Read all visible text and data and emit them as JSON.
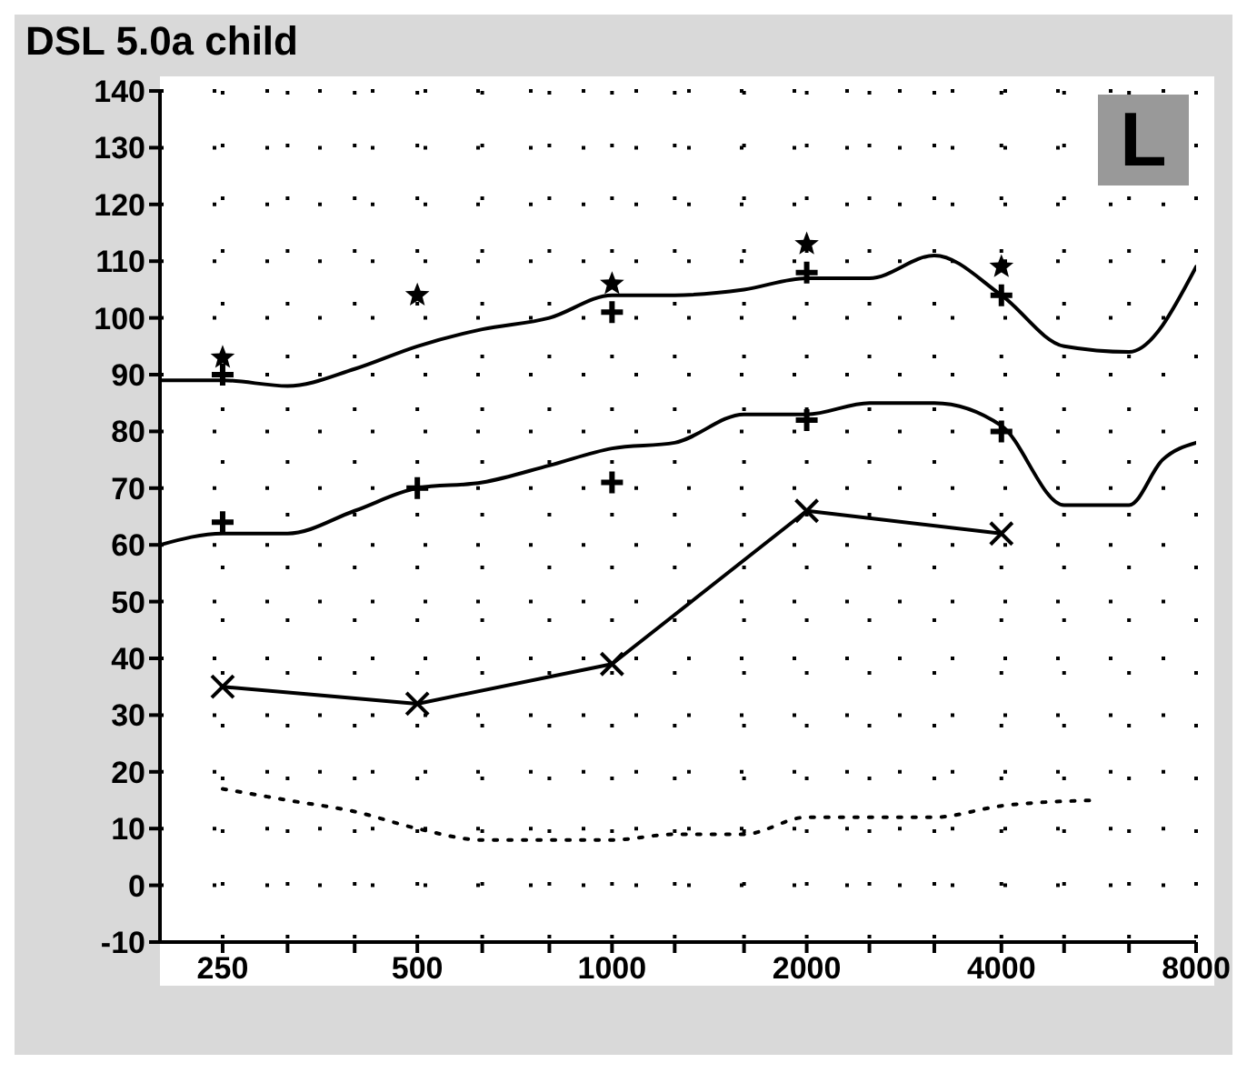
{
  "chart_data": {
    "type": "line",
    "title": "DSL 5.0a child",
    "annotations": [
      "L"
    ],
    "xlim": [
      200,
      8000
    ],
    "log": "x",
    "xticks": [
      250,
      {
        "value": 315,
        "label": null
      },
      {
        "value": 400,
        "label": null
      },
      500,
      {
        "value": 630,
        "label": null
      },
      {
        "value": 800,
        "label": null
      },
      1000,
      {
        "value": 1250,
        "label": null
      },
      {
        "value": 1600,
        "label": null
      },
      2000,
      {
        "value": 2500,
        "label": null
      },
      {
        "value": 3150,
        "label": null
      },
      4000,
      {
        "value": 5000,
        "label": null
      },
      {
        "value": 6300,
        "label": null
      },
      8000
    ],
    "ylim": [
      -10,
      140
    ],
    "yticks": [
      -10,
      0,
      10,
      20,
      30,
      40,
      50,
      60,
      70,
      80,
      90,
      100,
      110,
      120,
      130,
      140
    ],
    "grid": true,
    "series": [
      {
        "color": "#000000",
        "marker": "none",
        "line_style": "solid",
        "x": [
          200,
          250,
          315,
          400,
          500,
          630,
          800,
          1000,
          1250,
          1600,
          2000,
          2500,
          3150,
          4000,
          5000,
          6300,
          8000
        ],
        "values": [
          89,
          89,
          88,
          91,
          95,
          98,
          100,
          104,
          104,
          105,
          107,
          107,
          111,
          104,
          95,
          94,
          109
        ]
      },
      {
        "color": "#000000",
        "marker": "none",
        "line_style": "solid",
        "x": [
          200,
          250,
          315,
          400,
          500,
          630,
          800,
          1000,
          1250,
          1600,
          2000,
          2500,
          3150,
          4000,
          5000,
          6300,
          7100,
          8000
        ],
        "values": [
          60,
          62,
          62,
          66,
          70,
          71,
          74,
          77,
          78,
          83,
          83,
          85,
          85,
          81,
          67,
          67,
          75,
          78
        ]
      },
      {
        "color": "#000000",
        "marker": "cross",
        "line_style": "solid",
        "x": [
          250,
          500,
          1000,
          2000,
          4000
        ],
        "values": [
          35,
          32,
          39,
          66,
          62
        ]
      },
      {
        "color": "#000000",
        "marker": "none",
        "line_style": "dotted",
        "x": [
          250,
          315,
          400,
          500,
          630,
          800,
          1000,
          1250,
          1600,
          2000,
          2500,
          3150,
          4000,
          5600
        ],
        "values": [
          17,
          15,
          13,
          10,
          8,
          8,
          8,
          9,
          9,
          12,
          12,
          12,
          14,
          15
        ]
      },
      {
        "type": "scatter",
        "color": "#000000",
        "marker": "star",
        "x": [
          250,
          500,
          1000,
          2000,
          4000
        ],
        "values": [
          93,
          104,
          106,
          113,
          109
        ]
      },
      {
        "type": "scatter",
        "color": "#000000",
        "marker": "cross",
        "x": [
          250,
          1000,
          2000,
          4000,
          250,
          500,
          1000,
          2000,
          4000
        ],
        "values": [
          90,
          101,
          108,
          104,
          64,
          70,
          71,
          82,
          80
        ]
      }
    ]
  }
}
